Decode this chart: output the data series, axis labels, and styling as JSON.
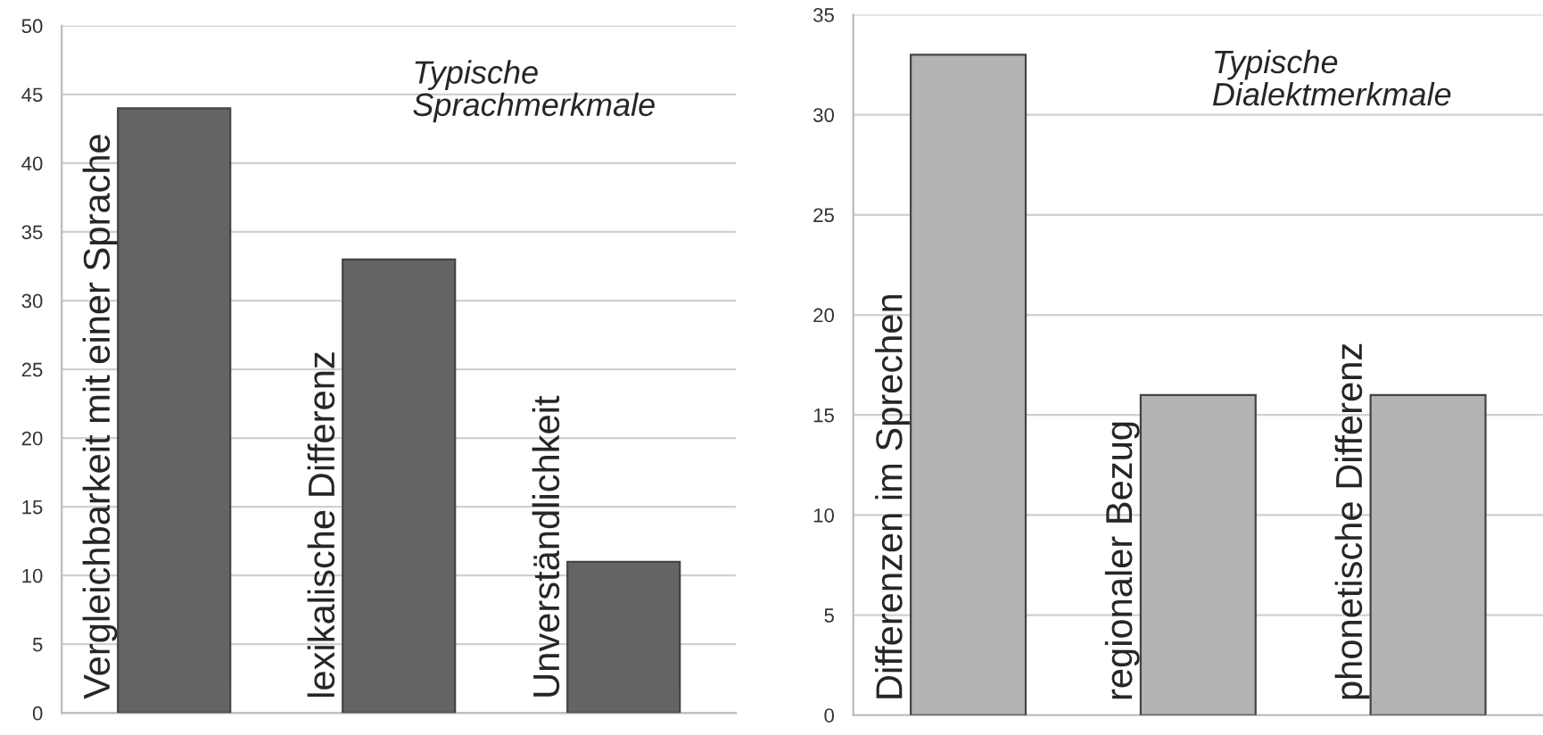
{
  "chart_data": [
    {
      "type": "bar",
      "title": "Typische\nSprachmerkmale",
      "categories": [
        "Vergleichbarkeit mit einer Sprache",
        "lexikalische Differenz",
        "Unverständlichkeit"
      ],
      "values": [
        44,
        33,
        11
      ],
      "color": "#646464",
      "ylim": [
        0,
        50
      ],
      "yticks": [
        0,
        5,
        10,
        15,
        20,
        25,
        30,
        35,
        40,
        45,
        50
      ],
      "grid": "y"
    },
    {
      "type": "bar",
      "title": "Typische\nDialektmerkmale",
      "categories": [
        "Differenzen im Sprechen",
        "regionaler Bezug",
        "phonetische Differenz"
      ],
      "values": [
        33,
        16,
        16
      ],
      "color": "#b3b3b3",
      "ylim": [
        0,
        35
      ],
      "yticks": [
        0,
        5,
        10,
        15,
        20,
        25,
        30,
        35
      ],
      "grid": "y"
    }
  ]
}
